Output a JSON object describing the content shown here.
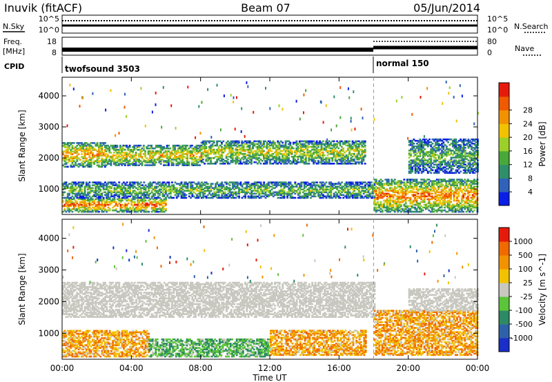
{
  "header": {
    "station": "Inuvik (fitACF)",
    "beam": "Beam 07",
    "date": "05/Jun/2014"
  },
  "top_panels": {
    "nsky_label": "N.Sky",
    "nsearch_label": "N.Search",
    "freq_label_1": "Freq.",
    "freq_label_2": "[MHz]",
    "nave_label": "Nave",
    "cpid_label": "CPID",
    "noise_ticks": [
      "10^5",
      "10^0"
    ],
    "noise_ticks_right": [
      "10^5",
      "10^0"
    ],
    "freq_ticks": [
      "18",
      "8"
    ],
    "nave_ticks": [
      "80",
      "0"
    ],
    "cpid_segments": [
      {
        "label": "twofsound 3503",
        "start_hour": 0,
        "end_hour": 18
      },
      {
        "label": "normal 150",
        "start_hour": 18,
        "end_hour": 24
      }
    ]
  },
  "time_axis": {
    "ticks": [
      "00:00",
      "04:00",
      "08:00",
      "12:00",
      "16:00",
      "20:00",
      "00:00"
    ],
    "label": "Time UT"
  },
  "chart_data": [
    {
      "type": "heatmap",
      "name": "power",
      "ylabel": "Slant Range [km]",
      "yticks": [
        1000,
        2000,
        3000,
        4000
      ],
      "ylim": [
        180,
        4600
      ],
      "xlim_hours": [
        0,
        24
      ],
      "colorbar": {
        "title": "Power [dB]",
        "ticks": [
          "4",
          "8",
          "12",
          "16",
          "20",
          "24",
          "28"
        ],
        "colors": [
          "#0a1ee6",
          "#2f62b8",
          "#2f8f6a",
          "#4aa83a",
          "#9ccf2a",
          "#f2c200",
          "#f29200",
          "#f05a00",
          "#e61a0a"
        ]
      },
      "bands": [
        {
          "t0": 0.0,
          "t1": 2.5,
          "r0": 1700,
          "r1": 2500,
          "level": 0.75
        },
        {
          "t0": 2.5,
          "t1": 8.0,
          "r0": 1750,
          "r1": 2400,
          "level": 0.65
        },
        {
          "t0": 8.0,
          "t1": 17.5,
          "r0": 1800,
          "r1": 2550,
          "level": 0.55
        },
        {
          "t0": 0.0,
          "t1": 6.0,
          "r0": 250,
          "r1": 700,
          "level": 0.85
        },
        {
          "t0": 0.0,
          "t1": 18.0,
          "r0": 700,
          "r1": 1200,
          "level": 0.45
        },
        {
          "t0": 18.0,
          "t1": 24.0,
          "r0": 250,
          "r1": 1300,
          "level": 0.8
        },
        {
          "t0": 20.0,
          "t1": 24.0,
          "r0": 1500,
          "r1": 2600,
          "level": 0.4
        }
      ]
    },
    {
      "type": "heatmap",
      "name": "velocity",
      "ylabel": "Slant Range [km]",
      "yticks": [
        1000,
        2000,
        3000,
        4000
      ],
      "ylim": [
        180,
        4600
      ],
      "xlim_hours": [
        0,
        24
      ],
      "colorbar": {
        "title": "Velocity [m s^-1]",
        "ticks": [
          "1000",
          "500",
          "100",
          "25",
          "-25",
          "-100",
          "-500",
          "-1000"
        ],
        "colors": [
          "#1a2ec8",
          "#2e62a8",
          "#2e8a64",
          "#5cc43a",
          "#c8c8c0",
          "#f2c200",
          "#f29200",
          "#f06a00",
          "#e61a0a"
        ]
      },
      "bands": [
        {
          "t0": 0.0,
          "t1": 18.0,
          "r0": 1500,
          "r1": 2600,
          "class": "gray"
        },
        {
          "t0": 0.0,
          "t1": 5.0,
          "r0": 250,
          "r1": 1100,
          "class": "orange"
        },
        {
          "t0": 5.0,
          "t1": 12.0,
          "r0": 250,
          "r1": 800,
          "class": "green"
        },
        {
          "t0": 12.0,
          "t1": 17.5,
          "r0": 300,
          "r1": 1100,
          "class": "orange"
        },
        {
          "t0": 18.0,
          "t1": 24.0,
          "r0": 300,
          "r1": 1700,
          "class": "orange"
        },
        {
          "t0": 20.0,
          "t1": 24.0,
          "r0": 1700,
          "r1": 2400,
          "class": "gray"
        }
      ]
    }
  ]
}
